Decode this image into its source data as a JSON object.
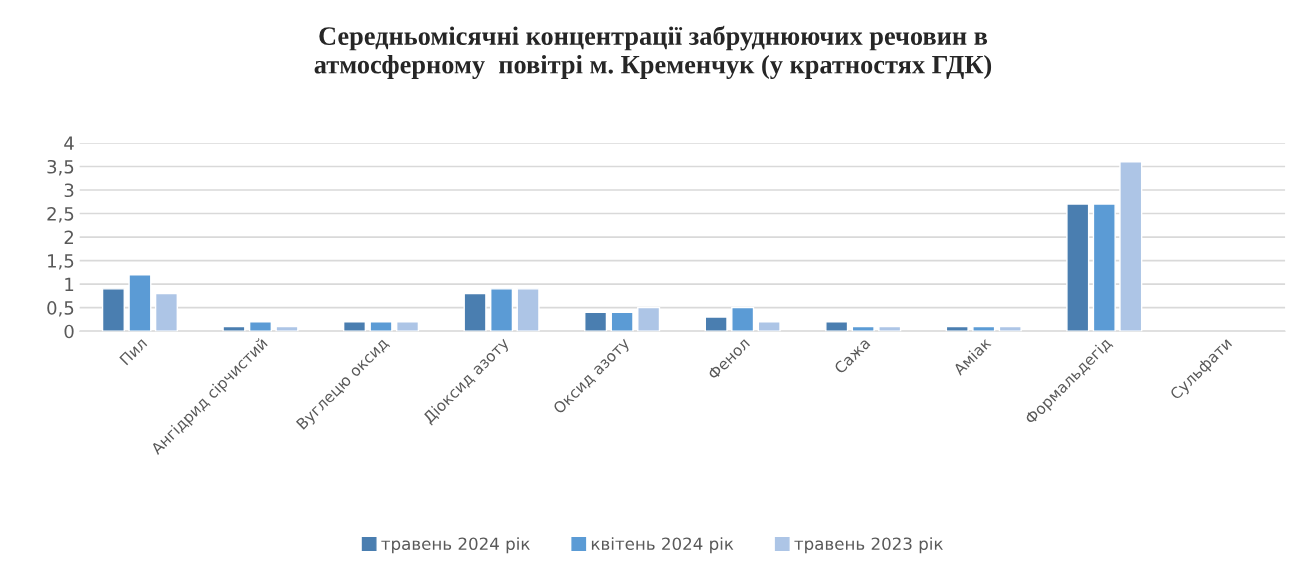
{
  "chart_data": {
    "type": "bar",
    "title": "Середньомісячні концентрації забруднюючих речовин в\nатмосферному  повітрі м. Кременчук (у кратностях ГДК)",
    "categories": [
      "Пил",
      "Ангідрид сірчистий",
      "Вуглецю оксид",
      "Діоксид азоту",
      "Оксид азоту",
      "Фенол",
      "Сажа",
      "Аміак",
      "Формальдегід",
      "Сульфати"
    ],
    "series": [
      {
        "name": "травень 2024 рік",
        "color": "#4a7eb0",
        "values": [
          0.9,
          0.1,
          0.2,
          0.8,
          0.4,
          0.3,
          0.2,
          0.1,
          2.7,
          null
        ]
      },
      {
        "name": "квітень 2024 рік",
        "color": "#5b9bd5",
        "values": [
          1.2,
          0.2,
          0.2,
          0.9,
          0.4,
          0.5,
          0.1,
          0.1,
          2.7,
          null
        ]
      },
      {
        "name": "травень 2023 рік",
        "color": "#adc5e6",
        "values": [
          0.8,
          0.1,
          0.2,
          0.9,
          0.5,
          0.2,
          0.1,
          0.1,
          3.6,
          null
        ]
      }
    ],
    "ylim": [
      0,
      4
    ],
    "yticks": [
      0,
      {
        "value": 0.5,
        "label": "0,5"
      },
      1,
      {
        "value": 1.5,
        "label": "1,5"
      },
      2,
      {
        "value": 2.5,
        "label": "2,5"
      },
      3,
      {
        "value": 3.5,
        "label": "3,5"
      },
      4
    ],
    "grid": "y",
    "legend": "bottom"
  }
}
